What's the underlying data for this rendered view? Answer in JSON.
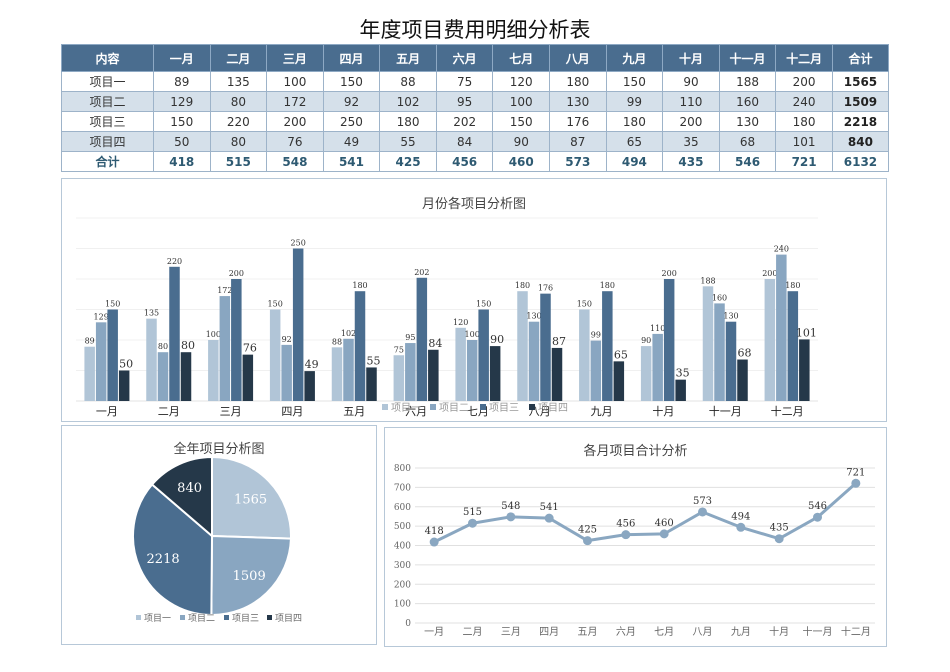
{
  "page": {
    "title": "年度项目费用明细分析表"
  },
  "table": {
    "headers": [
      "内容",
      "一月",
      "二月",
      "三月",
      "四月",
      "五月",
      "六月",
      "七月",
      "八月",
      "九月",
      "十月",
      "十一月",
      "十二月",
      "合计"
    ],
    "rows": [
      {
        "label": "项目一",
        "values": [
          89,
          135,
          100,
          150,
          88,
          75,
          120,
          180,
          150,
          90,
          188,
          200
        ],
        "total": 1565
      },
      {
        "label": "项目二",
        "values": [
          129,
          80,
          172,
          92,
          102,
          95,
          100,
          130,
          99,
          110,
          160,
          240
        ],
        "total": 1509
      },
      {
        "label": "项目三",
        "values": [
          150,
          220,
          200,
          250,
          180,
          202,
          150,
          176,
          180,
          200,
          130,
          180
        ],
        "total": 2218
      },
      {
        "label": "项目四",
        "values": [
          50,
          80,
          76,
          49,
          55,
          84,
          90,
          87,
          65,
          35,
          68,
          101
        ],
        "total": 840
      }
    ],
    "sum_row": {
      "label": "合计",
      "values": [
        418,
        515,
        548,
        541,
        425,
        456,
        460,
        573,
        494,
        435,
        546,
        721
      ],
      "total": 6132
    }
  },
  "colors": {
    "header_bg": "#4a6d8f",
    "alt_row": "#d5e0ea",
    "p1": "#b1c5d7",
    "p2": "#89a6c1",
    "p3": "#4a6d8f",
    "p4": "#253849",
    "line": "#8aa7c1"
  },
  "chart_data": [
    {
      "type": "bar",
      "title": "月份各项目分析图",
      "categories": [
        "一月",
        "二月",
        "三月",
        "四月",
        "五月",
        "六月",
        "七月",
        "八月",
        "九月",
        "十月",
        "十一月",
        "十二月"
      ],
      "series": [
        {
          "name": "项目一",
          "values": [
            89,
            135,
            100,
            150,
            88,
            75,
            120,
            180,
            150,
            90,
            188,
            200
          ]
        },
        {
          "name": "项目二",
          "values": [
            129,
            80,
            172,
            92,
            102,
            95,
            100,
            130,
            99,
            110,
            160,
            240
          ]
        },
        {
          "name": "项目三",
          "values": [
            150,
            220,
            200,
            250,
            180,
            202,
            150,
            176,
            180,
            200,
            130,
            180
          ]
        },
        {
          "name": "项目四",
          "values": [
            50,
            80,
            76,
            49,
            55,
            84,
            90,
            87,
            65,
            35,
            68,
            101
          ]
        }
      ],
      "ylim": [
        0,
        300
      ],
      "grid": true,
      "legend_position": "bottom"
    },
    {
      "type": "pie",
      "title": "全年项目分析图",
      "categories": [
        "项目一",
        "项目二",
        "项目三",
        "项目四"
      ],
      "values": [
        1565,
        1509,
        2218,
        840
      ],
      "legend_position": "bottom"
    },
    {
      "type": "line",
      "title": "各月项目合计分析",
      "categories": [
        "一月",
        "二月",
        "三月",
        "四月",
        "五月",
        "六月",
        "七月",
        "八月",
        "九月",
        "十月",
        "十一月",
        "十二月"
      ],
      "values": [
        418,
        515,
        548,
        541,
        425,
        456,
        460,
        573,
        494,
        435,
        546,
        721
      ],
      "ylim": [
        0,
        800
      ],
      "yticks": [
        0,
        100,
        200,
        300,
        400,
        500,
        600,
        700,
        800
      ],
      "grid": true
    }
  ]
}
